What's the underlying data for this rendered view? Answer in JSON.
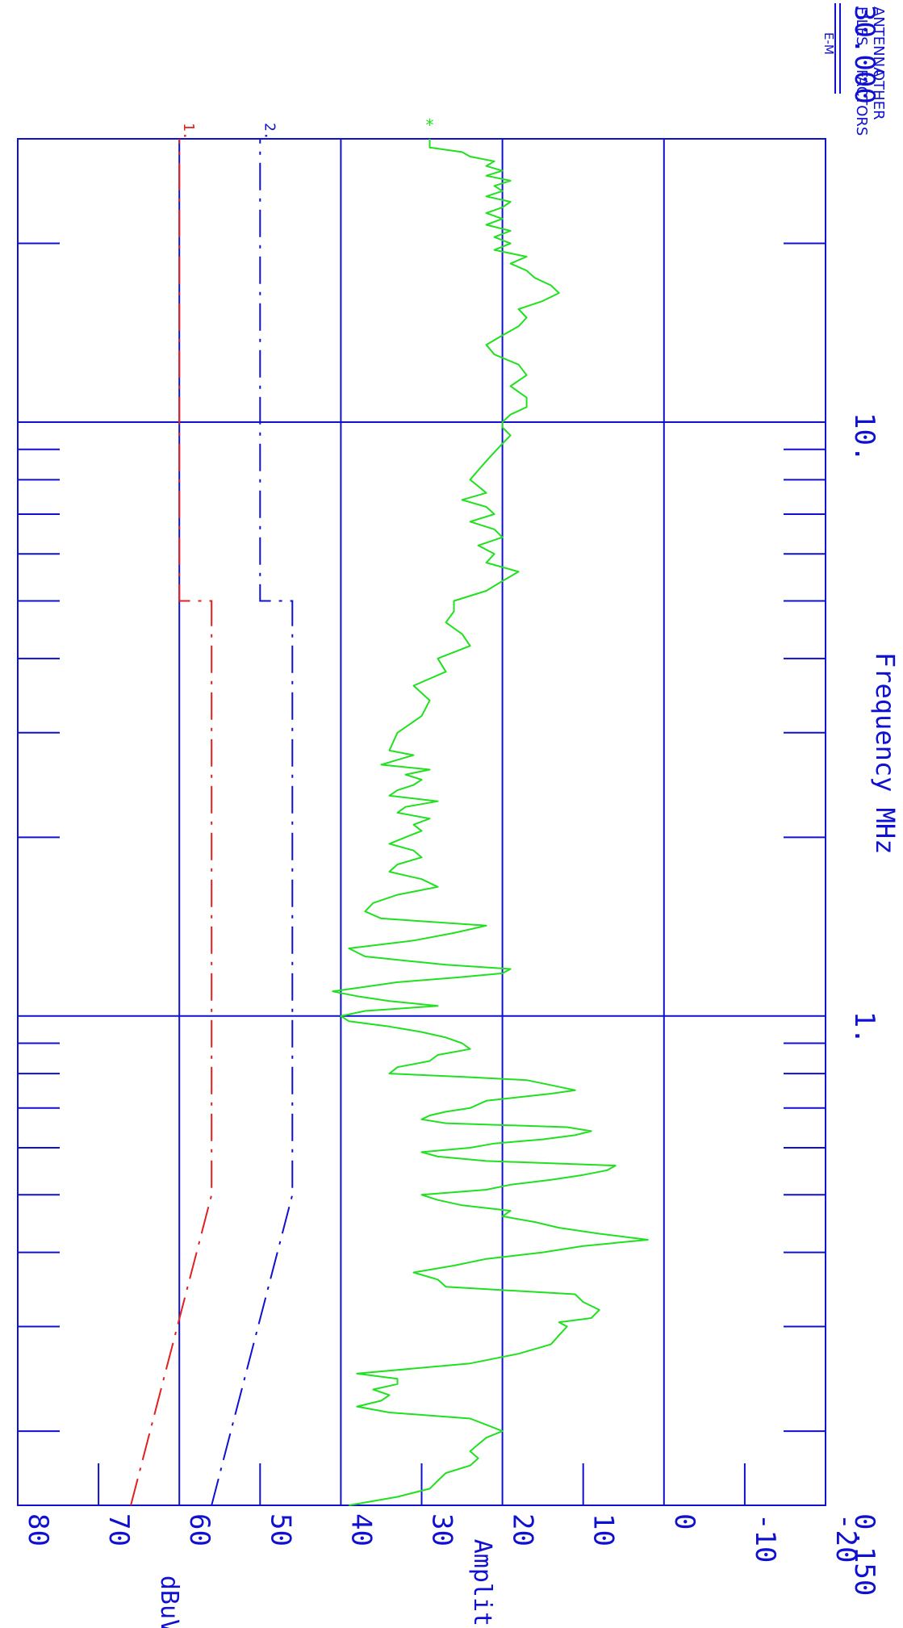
{
  "header": {
    "antenna_files": [
      "ANTENNA",
      "FILES"
    ],
    "other_factors": [
      "OTHER",
      "FACTORS"
    ],
    "logo": "E-M"
  },
  "colors": {
    "axis": "#1010d0",
    "limit1": "#e02020",
    "limit2": "#1010d0",
    "trace": "#20e020",
    "background": "#ffffff"
  },
  "chart_data": {
    "type": "line",
    "xlabel": "Frequency MHz",
    "ylabel": "Amplitude",
    "yunit": "dBuV",
    "x_scale": "log",
    "xlim": [
      0.15,
      30.0
    ],
    "ylim": [
      -20,
      80
    ],
    "x_tick_labels": [
      {
        "value": 0.15,
        "label": "0.150"
      },
      {
        "value": 1,
        "label": "1."
      },
      {
        "value": 10,
        "label": "10."
      },
      {
        "value": 30,
        "label": "30.000"
      }
    ],
    "y_ticks": [
      80,
      70,
      60,
      50,
      40,
      30,
      20,
      10,
      0,
      -10,
      -20
    ],
    "y_tick_labels": [
      "80",
      "70",
      "60",
      "50",
      "40",
      "30",
      "20",
      "10",
      "0",
      "-10",
      "-20"
    ],
    "grid": true,
    "series": [
      {
        "name": "1.",
        "style": "dash-dot",
        "color": "#e02020",
        "points": [
          [
            0.15,
            66
          ],
          [
            0.5,
            56
          ],
          [
            5,
            56
          ],
          [
            5,
            60
          ],
          [
            30,
            60
          ]
        ]
      },
      {
        "name": "2.",
        "style": "dash-dot",
        "color": "#1010d0",
        "points": [
          [
            0.15,
            56
          ],
          [
            0.5,
            46
          ],
          [
            5,
            46
          ],
          [
            5,
            50
          ],
          [
            30,
            50
          ]
        ]
      },
      {
        "name": "",
        "style": "solid",
        "color": "#20e020",
        "marker": "*",
        "points": [
          [
            0.15,
            39
          ],
          [
            0.155,
            33
          ],
          [
            0.16,
            29
          ],
          [
            0.165,
            28
          ],
          [
            0.17,
            27
          ],
          [
            0.175,
            24
          ],
          [
            0.18,
            23
          ],
          [
            0.185,
            24
          ],
          [
            0.19,
            23
          ],
          [
            0.195,
            22
          ],
          [
            0.2,
            20
          ],
          [
            0.205,
            22
          ],
          [
            0.21,
            24
          ],
          [
            0.215,
            34
          ],
          [
            0.22,
            38
          ],
          [
            0.225,
            35
          ],
          [
            0.23,
            34
          ],
          [
            0.235,
            36
          ],
          [
            0.24,
            33
          ],
          [
            0.245,
            33
          ],
          [
            0.25,
            38
          ],
          [
            0.26,
            24
          ],
          [
            0.265,
            21
          ],
          [
            0.27,
            18
          ],
          [
            0.28,
            14
          ],
          [
            0.29,
            13
          ],
          [
            0.3,
            12
          ],
          [
            0.305,
            13
          ],
          [
            0.31,
            9
          ],
          [
            0.32,
            8
          ],
          [
            0.33,
            10
          ],
          [
            0.34,
            11
          ],
          [
            0.35,
            27
          ],
          [
            0.36,
            28
          ],
          [
            0.37,
            31
          ],
          [
            0.38,
            26
          ],
          [
            0.39,
            22
          ],
          [
            0.4,
            15
          ],
          [
            0.41,
            10
          ],
          [
            0.42,
            2
          ],
          [
            0.43,
            8
          ],
          [
            0.44,
            13
          ],
          [
            0.45,
            16
          ],
          [
            0.46,
            20
          ],
          [
            0.47,
            19
          ],
          [
            0.48,
            25
          ],
          [
            0.49,
            28
          ],
          [
            0.5,
            30
          ],
          [
            0.51,
            22
          ],
          [
            0.52,
            19
          ],
          [
            0.53,
            14
          ],
          [
            0.54,
            10
          ],
          [
            0.55,
            7
          ],
          [
            0.56,
            6
          ],
          [
            0.57,
            22
          ],
          [
            0.58,
            28
          ],
          [
            0.59,
            30
          ],
          [
            0.6,
            24
          ],
          [
            0.61,
            21
          ],
          [
            0.62,
            15
          ],
          [
            0.63,
            11
          ],
          [
            0.64,
            9
          ],
          [
            0.65,
            12
          ],
          [
            0.66,
            27
          ],
          [
            0.67,
            30
          ],
          [
            0.68,
            29
          ],
          [
            0.69,
            27
          ],
          [
            0.7,
            24
          ],
          [
            0.72,
            22
          ],
          [
            0.73,
            18
          ],
          [
            0.74,
            14
          ],
          [
            0.75,
            11
          ],
          [
            0.77,
            15
          ],
          [
            0.78,
            17
          ],
          [
            0.79,
            25
          ],
          [
            0.8,
            34
          ],
          [
            0.82,
            33
          ],
          [
            0.84,
            29
          ],
          [
            0.86,
            28
          ],
          [
            0.88,
            24
          ],
          [
            0.9,
            25
          ],
          [
            0.92,
            27
          ],
          [
            0.94,
            30
          ],
          [
            0.96,
            34
          ],
          [
            0.98,
            39
          ],
          [
            1.0,
            40
          ],
          [
            1.02,
            37
          ],
          [
            1.04,
            28
          ],
          [
            1.06,
            34
          ],
          [
            1.08,
            38
          ],
          [
            1.1,
            41
          ],
          [
            1.12,
            37
          ],
          [
            1.14,
            33
          ],
          [
            1.16,
            26
          ],
          [
            1.18,
            20
          ],
          [
            1.2,
            19
          ],
          [
            1.22,
            27
          ],
          [
            1.26,
            37
          ],
          [
            1.3,
            39
          ],
          [
            1.34,
            31
          ],
          [
            1.38,
            26
          ],
          [
            1.42,
            22
          ],
          [
            1.46,
            35
          ],
          [
            1.5,
            37
          ],
          [
            1.55,
            36
          ],
          [
            1.6,
            33
          ],
          [
            1.65,
            28
          ],
          [
            1.7,
            30
          ],
          [
            1.75,
            34
          ],
          [
            1.8,
            33
          ],
          [
            1.85,
            30
          ],
          [
            1.9,
            31
          ],
          [
            1.95,
            34
          ],
          [
            2.0,
            32
          ],
          [
            2.05,
            30
          ],
          [
            2.1,
            31
          ],
          [
            2.15,
            29
          ],
          [
            2.2,
            33
          ],
          [
            2.25,
            32
          ],
          [
            2.3,
            28
          ],
          [
            2.35,
            34
          ],
          [
            2.4,
            33
          ],
          [
            2.45,
            31
          ],
          [
            2.5,
            30
          ],
          [
            2.55,
            32
          ],
          [
            2.6,
            29
          ],
          [
            2.65,
            35
          ],
          [
            2.7,
            33
          ],
          [
            2.75,
            31
          ],
          [
            2.8,
            34
          ],
          [
            3.0,
            33
          ],
          [
            3.2,
            30
          ],
          [
            3.4,
            29
          ],
          [
            3.6,
            31
          ],
          [
            3.8,
            27
          ],
          [
            4.0,
            28
          ],
          [
            4.2,
            24
          ],
          [
            4.4,
            25
          ],
          [
            4.6,
            27
          ],
          [
            4.8,
            26
          ],
          [
            5.0,
            26
          ],
          [
            5.2,
            22
          ],
          [
            5.4,
            20
          ],
          [
            5.6,
            18
          ],
          [
            5.8,
            22
          ],
          [
            6.0,
            21
          ],
          [
            6.2,
            23
          ],
          [
            6.4,
            20
          ],
          [
            6.6,
            21
          ],
          [
            6.8,
            24
          ],
          [
            7.0,
            21
          ],
          [
            7.2,
            22
          ],
          [
            7.4,
            25
          ],
          [
            7.6,
            22
          ],
          [
            7.8,
            23
          ],
          [
            8.0,
            24
          ],
          [
            8.3,
            23
          ],
          [
            8.6,
            22
          ],
          [
            8.9,
            21
          ],
          [
            9.2,
            20
          ],
          [
            9.5,
            19
          ],
          [
            9.8,
            20
          ],
          [
            10.0,
            20
          ],
          [
            10.3,
            19
          ],
          [
            10.6,
            17
          ],
          [
            11.0,
            17
          ],
          [
            11.5,
            19
          ],
          [
            12.0,
            17
          ],
          [
            12.5,
            18
          ],
          [
            13.0,
            21
          ],
          [
            13.5,
            22
          ],
          [
            14.0,
            20
          ],
          [
            14.5,
            18
          ],
          [
            15.0,
            17
          ],
          [
            15.5,
            18
          ],
          [
            16.0,
            15
          ],
          [
            16.5,
            13
          ],
          [
            17.0,
            14
          ],
          [
            17.5,
            16
          ],
          [
            18.0,
            17
          ],
          [
            18.5,
            19
          ],
          [
            19.0,
            17
          ],
          [
            19.5,
            21
          ],
          [
            20.0,
            19
          ],
          [
            20.5,
            21
          ],
          [
            21.0,
            19
          ],
          [
            21.5,
            22
          ],
          [
            22.0,
            20
          ],
          [
            22.5,
            22
          ],
          [
            23.0,
            20
          ],
          [
            23.5,
            19
          ],
          [
            24.0,
            22
          ],
          [
            24.5,
            20
          ],
          [
            25.0,
            21
          ],
          [
            25.5,
            19
          ],
          [
            26.0,
            22
          ],
          [
            26.5,
            20
          ],
          [
            27.0,
            22
          ],
          [
            27.5,
            21
          ],
          [
            28.0,
            24
          ],
          [
            28.5,
            25
          ],
          [
            29.0,
            29
          ],
          [
            29.5,
            29
          ],
          [
            30.0,
            29
          ]
        ]
      }
    ]
  }
}
